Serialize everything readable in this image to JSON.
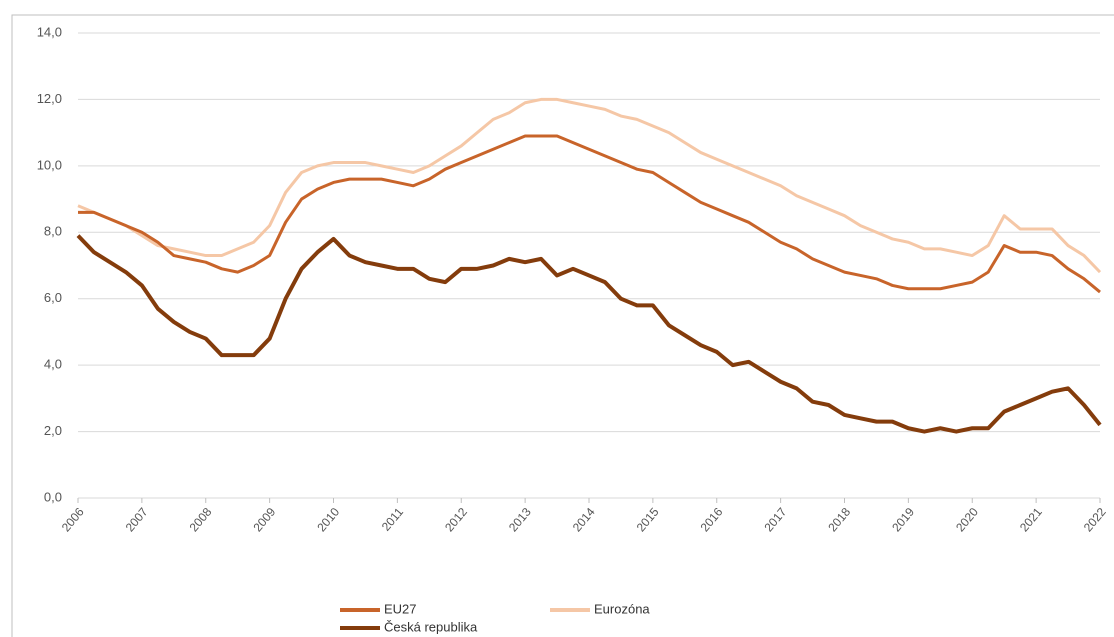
{
  "chart_data": {
    "type": "line",
    "x": [
      2006,
      2006.25,
      2006.5,
      2006.75,
      2007,
      2007.25,
      2007.5,
      2007.75,
      2008,
      2008.25,
      2008.5,
      2008.75,
      2009,
      2009.25,
      2009.5,
      2009.75,
      2010,
      2010.25,
      2010.5,
      2010.75,
      2011,
      2011.25,
      2011.5,
      2011.75,
      2012,
      2012.25,
      2012.5,
      2012.75,
      2013,
      2013.25,
      2013.5,
      2013.75,
      2014,
      2014.25,
      2014.5,
      2014.75,
      2015,
      2015.25,
      2015.5,
      2015.75,
      2016,
      2016.25,
      2016.5,
      2016.75,
      2017,
      2017.25,
      2017.5,
      2017.75,
      2018,
      2018.25,
      2018.5,
      2018.75,
      2019,
      2019.25,
      2019.5,
      2019.75,
      2020,
      2020.25,
      2020.5,
      2020.75,
      2021,
      2021.25,
      2021.5,
      2021.75,
      2022
    ],
    "series": [
      {
        "name": "EU27",
        "color": "#c8642a",
        "values": [
          8.6,
          8.6,
          8.4,
          8.2,
          8.0,
          7.7,
          7.3,
          7.2,
          7.1,
          6.9,
          6.8,
          7.0,
          7.3,
          8.3,
          9.0,
          9.3,
          9.5,
          9.6,
          9.6,
          9.6,
          9.5,
          9.4,
          9.6,
          9.9,
          10.1,
          10.3,
          10.5,
          10.7,
          10.9,
          10.9,
          10.9,
          10.7,
          10.5,
          10.3,
          10.1,
          9.9,
          9.8,
          9.5,
          9.2,
          8.9,
          8.7,
          8.5,
          8.3,
          8.0,
          7.7,
          7.5,
          7.2,
          7.0,
          6.8,
          6.7,
          6.6,
          6.4,
          6.3,
          6.3,
          6.3,
          6.4,
          6.5,
          6.8,
          7.6,
          7.4,
          7.4,
          7.3,
          6.9,
          6.6,
          6.2
        ]
      },
      {
        "name": "Eurozóna",
        "color": "#f5c7a6",
        "values": [
          8.8,
          8.6,
          8.4,
          8.2,
          7.9,
          7.6,
          7.5,
          7.4,
          7.3,
          7.3,
          7.5,
          7.7,
          8.2,
          9.2,
          9.8,
          10.0,
          10.1,
          10.1,
          10.1,
          10.0,
          9.9,
          9.8,
          10.0,
          10.3,
          10.6,
          11.0,
          11.4,
          11.6,
          11.9,
          12.0,
          12.0,
          11.9,
          11.8,
          11.7,
          11.5,
          11.4,
          11.2,
          11.0,
          10.7,
          10.4,
          10.2,
          10.0,
          9.8,
          9.6,
          9.4,
          9.1,
          8.9,
          8.7,
          8.5,
          8.2,
          8.0,
          7.8,
          7.7,
          7.5,
          7.5,
          7.4,
          7.3,
          7.6,
          8.5,
          8.1,
          8.1,
          8.1,
          7.6,
          7.3,
          6.8
        ]
      },
      {
        "name": "Česká republika",
        "color": "#843c0c",
        "values": [
          7.9,
          7.4,
          7.1,
          6.8,
          6.4,
          5.7,
          5.3,
          5.0,
          4.8,
          4.3,
          4.3,
          4.3,
          4.8,
          6.0,
          6.9,
          7.4,
          7.8,
          7.3,
          7.1,
          7.0,
          6.9,
          6.9,
          6.6,
          6.5,
          6.9,
          6.9,
          7.0,
          7.2,
          7.1,
          7.2,
          6.7,
          6.9,
          6.7,
          6.5,
          6.0,
          5.8,
          5.8,
          5.2,
          4.9,
          4.6,
          4.4,
          4.0,
          4.1,
          3.8,
          3.5,
          3.3,
          2.9,
          2.8,
          2.5,
          2.4,
          2.3,
          2.3,
          2.1,
          2.0,
          2.1,
          2.0,
          2.1,
          2.1,
          2.6,
          2.8,
          3.0,
          3.2,
          3.3,
          2.8,
          2.2
        ]
      }
    ],
    "xlim": [
      2006,
      2022
    ],
    "xticks": [
      2006,
      2007,
      2008,
      2009,
      2010,
      2011,
      2012,
      2013,
      2014,
      2015,
      2016,
      2017,
      2018,
      2019,
      2020,
      2021,
      2022
    ],
    "ylim": [
      0,
      14
    ],
    "yticks": [
      {
        "value": 0,
        "label": "0,0"
      },
      {
        "value": 2,
        "label": "2,0"
      },
      {
        "value": 4,
        "label": "4,0"
      },
      {
        "value": 6,
        "label": "6,0"
      },
      {
        "value": 8,
        "label": "8,0"
      },
      {
        "value": 10,
        "label": "10,0"
      },
      {
        "value": 12,
        "label": "12,0"
      },
      {
        "value": 14,
        "label": "14,0"
      }
    ],
    "grid": true
  }
}
